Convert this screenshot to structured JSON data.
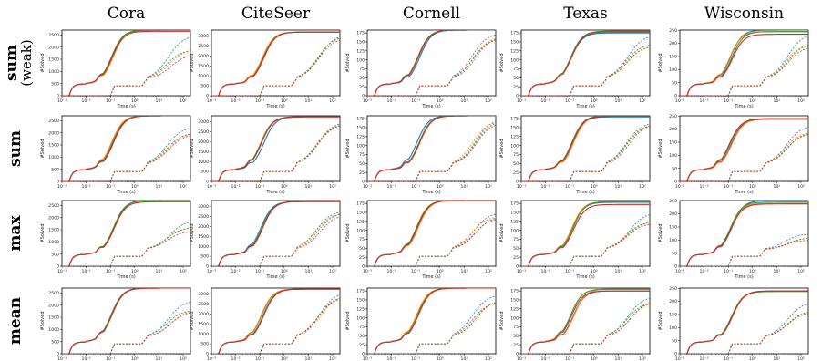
{
  "figure": {
    "column_titles": [
      "Cora",
      "CiteSeer",
      "Cornell",
      "Texas",
      "Wisconsin"
    ],
    "row_labels": [
      {
        "main": "sum",
        "sub": "(weak)"
      },
      {
        "main": "sum",
        "sub": ""
      },
      {
        "main": "max",
        "sub": ""
      },
      {
        "main": "mean",
        "sub": ""
      }
    ],
    "xlabel": "Time (s)",
    "ylabel": "#Solved",
    "x_tick_labels": [
      "10⁻³",
      "10⁻²",
      "10⁻¹",
      "10⁰",
      "10¹",
      "10²"
    ],
    "series_colors": [
      "#1f77b4",
      "#ff7f0e",
      "#2ca02c",
      "#d62728"
    ]
  },
  "chart_data": [
    {
      "type": "line",
      "dataset": "Cora",
      "row": "sum (weak)",
      "xscale": "log",
      "xlim": [
        0.001,
        200
      ],
      "ylim": [
        0,
        2700
      ],
      "yticks": [
        0,
        500,
        1000,
        1500,
        2000,
        2500
      ],
      "series_final_values": {
        "solid": [
          2700,
          2700,
          2700,
          2650
        ],
        "dashed": [
          2500,
          1900,
          1900,
          1700
        ]
      }
    },
    {
      "type": "line",
      "dataset": "CiteSeer",
      "row": "sum (weak)",
      "xscale": "log",
      "xlim": [
        0.001,
        200
      ],
      "ylim": [
        0,
        3300
      ],
      "yticks": [
        0,
        500,
        1000,
        1500,
        2000,
        2500,
        3000
      ],
      "series_final_values": {
        "solid": [
          3200,
          3200,
          3200,
          3200
        ],
        "dashed": [
          3100,
          3000,
          3000,
          2900
        ]
      }
    },
    {
      "type": "line",
      "dataset": "Cornell",
      "row": "sum (weak)",
      "xscale": "log",
      "xlim": [
        0.001,
        200
      ],
      "ylim": [
        0,
        183
      ],
      "yticks": [
        0,
        25,
        50,
        75,
        100,
        125,
        150,
        175
      ],
      "series_final_values": {
        "solid": [
          183,
          183,
          183,
          183
        ],
        "dashed": [
          175,
          165,
          165,
          160
        ]
      }
    },
    {
      "type": "line",
      "dataset": "Texas",
      "row": "sum (weak)",
      "xscale": "log",
      "xlim": [
        0.001,
        200
      ],
      "ylim": [
        0,
        183
      ],
      "yticks": [
        0,
        25,
        50,
        75,
        100,
        125,
        150,
        175
      ],
      "series_final_values": {
        "solid": [
          175,
          180,
          180,
          178
        ],
        "dashed": [
          170,
          140,
          140,
          145
        ]
      }
    },
    {
      "type": "line",
      "dataset": "Wisconsin",
      "row": "sum (weak)",
      "xscale": "log",
      "xlim": [
        0.001,
        200
      ],
      "ylim": [
        0,
        251
      ],
      "yticks": [
        0,
        50,
        100,
        150,
        200,
        250
      ],
      "series_final_values": {
        "solid": [
          251,
          245,
          245,
          235
        ],
        "dashed": [
          240,
          200,
          200,
          190
        ]
      }
    },
    {
      "type": "line",
      "dataset": "Cora",
      "row": "sum",
      "xscale": "log",
      "xlim": [
        0.001,
        200
      ],
      "ylim": [
        0,
        2700
      ],
      "yticks": [
        0,
        500,
        1000,
        1500,
        2000,
        2500
      ],
      "series_final_values": {
        "solid": [
          2700,
          2700,
          2700,
          2700
        ],
        "dashed": [
          2250,
          2000,
          2000,
          1950
        ]
      }
    },
    {
      "type": "line",
      "dataset": "CiteSeer",
      "row": "sum",
      "xscale": "log",
      "xlim": [
        0.001,
        200
      ],
      "ylim": [
        0,
        3300
      ],
      "yticks": [
        0,
        500,
        1000,
        1500,
        2000,
        2500,
        3000
      ],
      "series_final_values": {
        "solid": [
          3250,
          3250,
          3250,
          3250
        ],
        "dashed": [
          3000,
          2900,
          2900,
          2900
        ]
      }
    },
    {
      "type": "line",
      "dataset": "Cornell",
      "row": "sum",
      "xscale": "log",
      "xlim": [
        0.001,
        200
      ],
      "ylim": [
        0,
        183
      ],
      "yticks": [
        0,
        25,
        50,
        75,
        100,
        125,
        150,
        175
      ],
      "series_final_values": {
        "solid": [
          183,
          183,
          183,
          183
        ],
        "dashed": [
          175,
          170,
          170,
          165
        ]
      }
    },
    {
      "type": "line",
      "dataset": "Texas",
      "row": "sum",
      "xscale": "log",
      "xlim": [
        0.001,
        200
      ],
      "ylim": [
        0,
        183
      ],
      "yticks": [
        0,
        25,
        50,
        75,
        100,
        125,
        150,
        175
      ],
      "series_final_values": {
        "solid": [
          180,
          183,
          183,
          182
        ],
        "dashed": [
          165,
          160,
          160,
          160
        ]
      }
    },
    {
      "type": "line",
      "dataset": "Wisconsin",
      "row": "sum",
      "xscale": "log",
      "xlim": [
        0.001,
        200
      ],
      "ylim": [
        0,
        251
      ],
      "yticks": [
        0,
        50,
        100,
        150,
        200,
        250
      ],
      "series_final_values": {
        "solid": [
          240,
          238,
          238,
          240
        ],
        "dashed": [
          215,
          190,
          190,
          185
        ]
      }
    },
    {
      "type": "line",
      "dataset": "Cora",
      "row": "max",
      "xscale": "log",
      "xlim": [
        0.001,
        200
      ],
      "ylim": [
        0,
        2700
      ],
      "yticks": [
        0,
        500,
        1000,
        1500,
        2000,
        2500
      ],
      "series_final_values": {
        "solid": [
          2700,
          2700,
          2700,
          2650
        ],
        "dashed": [
          1900,
          1600,
          1600,
          1450
        ]
      }
    },
    {
      "type": "line",
      "dataset": "CiteSeer",
      "row": "max",
      "xscale": "log",
      "xlim": [
        0.001,
        200
      ],
      "ylim": [
        0,
        3300
      ],
      "yticks": [
        0,
        500,
        1000,
        1500,
        2000,
        2500,
        3000
      ],
      "series_final_values": {
        "solid": [
          3250,
          3250,
          3250,
          3250
        ],
        "dashed": [
          2800,
          2700,
          2700,
          2600
        ]
      }
    },
    {
      "type": "line",
      "dataset": "Cornell",
      "row": "max",
      "xscale": "log",
      "xlim": [
        0.001,
        200
      ],
      "ylim": [
        0,
        183
      ],
      "yticks": [
        0,
        25,
        50,
        75,
        100,
        125,
        150,
        175
      ],
      "series_final_values": {
        "solid": [
          183,
          183,
          183,
          183
        ],
        "dashed": [
          150,
          140,
          140,
          135
        ]
      }
    },
    {
      "type": "line",
      "dataset": "Texas",
      "row": "max",
      "xscale": "log",
      "xlim": [
        0.001,
        200
      ],
      "ylim": [
        0,
        183
      ],
      "yticks": [
        0,
        25,
        50,
        75,
        100,
        125,
        150,
        175
      ],
      "series_final_values": {
        "solid": [
          178,
          180,
          180,
          172
        ],
        "dashed": [
          150,
          125,
          125,
          120
        ]
      }
    },
    {
      "type": "line",
      "dataset": "Wisconsin",
      "row": "max",
      "xscale": "log",
      "xlim": [
        0.001,
        200
      ],
      "ylim": [
        0,
        251
      ],
      "yticks": [
        0,
        50,
        100,
        150,
        200,
        250
      ],
      "series_final_values": {
        "solid": [
          251,
          240,
          245,
          238
        ],
        "dashed": [
          125,
          110,
          110,
          100
        ]
      }
    },
    {
      "type": "line",
      "dataset": "Cora",
      "row": "mean",
      "xscale": "log",
      "xlim": [
        0.001,
        200
      ],
      "ylim": [
        0,
        2700
      ],
      "yticks": [
        0,
        500,
        1000,
        1500,
        2000,
        2500
      ],
      "series_final_values": {
        "solid": [
          2700,
          2700,
          2700,
          2700
        ],
        "dashed": [
          2200,
          1800,
          1800,
          1750
        ]
      }
    },
    {
      "type": "line",
      "dataset": "CiteSeer",
      "row": "mean",
      "xscale": "log",
      "xlim": [
        0.001,
        200
      ],
      "ylim": [
        0,
        3300
      ],
      "yticks": [
        0,
        500,
        1000,
        1500,
        2000,
        2500,
        3000
      ],
      "series_final_values": {
        "solid": [
          3250,
          3250,
          3250,
          3250
        ],
        "dashed": [
          3100,
          2900,
          2900,
          2850
        ]
      }
    },
    {
      "type": "line",
      "dataset": "Cornell",
      "row": "mean",
      "xscale": "log",
      "xlim": [
        0.001,
        200
      ],
      "ylim": [
        0,
        183
      ],
      "yticks": [
        0,
        25,
        50,
        75,
        100,
        125,
        150,
        175
      ],
      "series_final_values": {
        "solid": [
          183,
          183,
          183,
          183
        ],
        "dashed": [
          165,
          150,
          150,
          145
        ]
      }
    },
    {
      "type": "line",
      "dataset": "Texas",
      "row": "mean",
      "xscale": "log",
      "xlim": [
        0.001,
        200
      ],
      "ylim": [
        0,
        183
      ],
      "yticks": [
        0,
        25,
        50,
        75,
        100,
        125,
        150,
        175
      ],
      "series_final_values": {
        "solid": [
          175,
          180,
          180,
          175
        ],
        "dashed": [
          160,
          145,
          145,
          148
        ]
      }
    },
    {
      "type": "line",
      "dataset": "Wisconsin",
      "row": "mean",
      "xscale": "log",
      "xlim": [
        0.001,
        200
      ],
      "ylim": [
        0,
        251
      ],
      "yticks": [
        0,
        50,
        100,
        150,
        200,
        250
      ],
      "series_final_values": {
        "solid": [
          240,
          238,
          238,
          240
        ],
        "dashed": [
          200,
          165,
          165,
          160
        ]
      }
    }
  ]
}
